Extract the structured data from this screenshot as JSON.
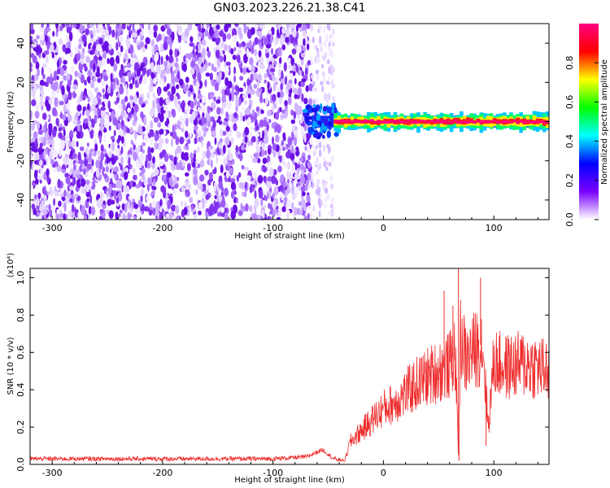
{
  "title": "GN03.2023.226.21.38.C41",
  "colors": {
    "snr_line": "#ee2c2c",
    "spectrogram_noise": "#7a1ee6",
    "colorbar_stops": [
      "#ffffff",
      "#7a00ff",
      "#0000ff",
      "#00ffff",
      "#00ff00",
      "#ffff00",
      "#ff0000",
      "#ff0080"
    ]
  },
  "chart_data": [
    {
      "type": "heatmap",
      "xlabel": "Height of straight line (km)",
      "ylabel": "Frequency (Hz)",
      "xlim": [
        -320,
        150
      ],
      "ylim": [
        -50,
        50
      ],
      "x_ticks": [
        -300,
        -200,
        -100,
        0,
        100
      ],
      "y_ticks": [
        -40,
        -20,
        0,
        20,
        40
      ],
      "colorbar": {
        "label": "Normalized spectral amplitude",
        "range": [
          0.0,
          1.0
        ],
        "ticks": [
          0.0,
          0.2,
          0.4,
          0.6,
          0.8
        ]
      },
      "regions": [
        {
          "x_from": -320,
          "x_to": -65,
          "freq_from": -50,
          "freq_to": 50,
          "amplitude": "0.1-0.4",
          "description": "noise"
        },
        {
          "x_from": -65,
          "x_to": -45,
          "freq_from": -50,
          "freq_to": 50,
          "amplitude": "0.0-0.2",
          "description": "sparse noise"
        },
        {
          "x_from": -70,
          "x_to": 150,
          "freq_from": -3,
          "freq_to": 3,
          "amplitude": "0.5-1.0",
          "description": "signal band near 0 Hz"
        }
      ]
    },
    {
      "type": "line",
      "xlabel": "Height of straight line (km)",
      "ylabel": "SNR (10 * v/v)",
      "y_multiplier": "(x10⁴)",
      "xlim": [
        -320,
        150
      ],
      "ylim": [
        0.0,
        1.05
      ],
      "x_ticks": [
        -300,
        -200,
        -100,
        0,
        100
      ],
      "y_ticks": [
        0.0,
        0.2,
        0.4,
        0.6,
        0.8,
        1.0
      ],
      "series": [
        {
          "x": [
            -320,
            -200,
            -100,
            -70,
            -55,
            -45,
            -35,
            -30,
            -20,
            -10,
            0,
            10,
            20,
            30,
            40,
            50,
            60,
            65,
            68,
            70,
            75,
            80,
            90,
            95,
            100,
            110,
            120,
            130,
            140,
            150
          ],
          "y": [
            0.03,
            0.03,
            0.03,
            0.04,
            0.08,
            0.03,
            0.02,
            0.12,
            0.18,
            0.24,
            0.3,
            0.33,
            0.38,
            0.43,
            0.47,
            0.5,
            0.53,
            0.6,
            0.05,
            0.7,
            0.55,
            0.6,
            0.65,
            0.2,
            0.55,
            0.52,
            0.53,
            0.54,
            0.52,
            0.5
          ],
          "peaks": [
            {
              "x": 55,
              "y": 0.93
            },
            {
              "x": 63,
              "y": 0.85
            },
            {
              "x": 68,
              "y": 1.05
            },
            {
              "x": 68.5,
              "y": 0.02
            },
            {
              "x": 88,
              "y": 1.0
            },
            {
              "x": 93,
              "y": 0.1
            }
          ]
        }
      ]
    }
  ]
}
